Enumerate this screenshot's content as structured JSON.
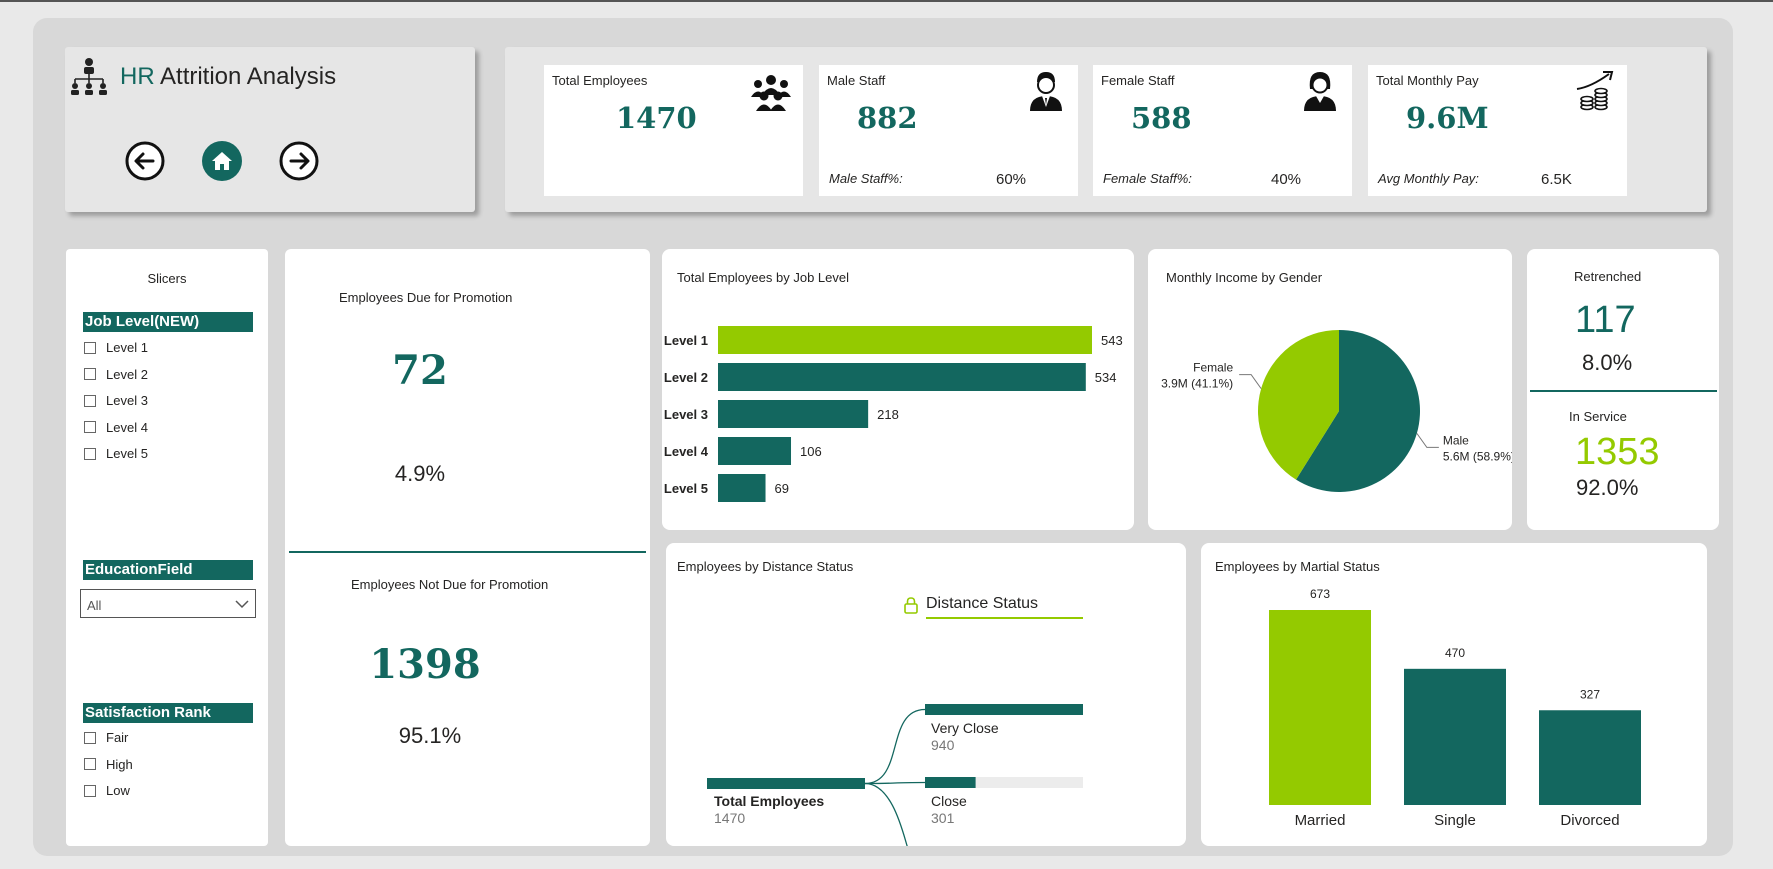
{
  "header": {
    "title_accent": "HR",
    "title_rest": " Attrition Analysis",
    "logo_icon": "org-chart-icon",
    "nav": {
      "back_icon": "arrow-left-icon",
      "home_icon": "home-icon",
      "forward_icon": "arrow-right-icon"
    }
  },
  "kpis": {
    "total_employees": {
      "label": "Total Employees",
      "value": "1470",
      "icon": "group-icon"
    },
    "male_staff": {
      "label": "Male Staff",
      "value": "882",
      "sub_label": "Male Staff%:",
      "sub_value": "60%",
      "icon": "male-person-icon"
    },
    "female_staff": {
      "label": "Female Staff",
      "value": "588",
      "sub_label": "Female Staff%:",
      "sub_value": "40%",
      "icon": "female-person-icon"
    },
    "total_monthly_pay": {
      "label": "Total Monthly Pay",
      "value": "9.6M",
      "sub_label": "Avg Monthly Pay:",
      "sub_value": "6.5K",
      "icon": "coins-growth-icon"
    }
  },
  "slicers": {
    "title": "Slicers",
    "job_level": {
      "header": "Job Level(NEW)",
      "options": [
        "Level 1",
        "Level 2",
        "Level 3",
        "Level 4",
        "Level 5"
      ]
    },
    "education_field": {
      "header": "EducationField",
      "selected": "All"
    },
    "satisfaction_rank": {
      "header": "Satisfaction Rank",
      "options": [
        "Fair",
        "High",
        "Low"
      ]
    }
  },
  "promotion": {
    "due": {
      "label": "Employees Due for Promotion",
      "value": "72",
      "percent": "4.9%"
    },
    "not_due": {
      "label": "Employees Not Due for Promotion",
      "value": "1398",
      "percent": "95.1%"
    }
  },
  "job_level_chart": {
    "title": "Total Employees by Job Level",
    "chart_data": {
      "type": "bar",
      "orientation": "horizontal",
      "categories": [
        "Level 1",
        "Level 2",
        "Level 3",
        "Level 4",
        "Level 5"
      ],
      "values": [
        543,
        534,
        218,
        106,
        69
      ],
      "highlight_index": 0,
      "colors": {
        "highlight": "#94ca00",
        "base": "#13675f"
      }
    }
  },
  "gender_chart": {
    "title": "Monthly Income by Gender",
    "chart_data": {
      "type": "pie",
      "slices": [
        {
          "name": "Male",
          "label": "5.6M (58.9%)",
          "value": 58.9,
          "color": "#13675f"
        },
        {
          "name": "Female",
          "label": "3.9M (41.1%)",
          "value": 41.1,
          "color": "#94ca00"
        }
      ]
    }
  },
  "service": {
    "retrenched": {
      "label": "Retrenched",
      "value": "117",
      "percent": "8.0%"
    },
    "in_service": {
      "label": "In Service",
      "value": "1353",
      "percent": "92.0%"
    }
  },
  "distance": {
    "title": "Employees by Distance Status",
    "tree_header": "Distance Status",
    "lock_icon": "lock-icon",
    "root": {
      "label": "Total Employees",
      "value": "1470",
      "count": 1470
    },
    "children": [
      {
        "label": "Very Close",
        "value": "940",
        "count": 940
      },
      {
        "label": "Close",
        "value": "301",
        "count": 301
      }
    ]
  },
  "marital_chart": {
    "title": "Employees by Martial Status",
    "chart_data": {
      "type": "bar",
      "categories": [
        "Married",
        "Single",
        "Divorced"
      ],
      "values": [
        673,
        470,
        327
      ],
      "highlight_index": 0,
      "colors": {
        "highlight": "#94ca00",
        "base": "#13675f"
      }
    }
  }
}
